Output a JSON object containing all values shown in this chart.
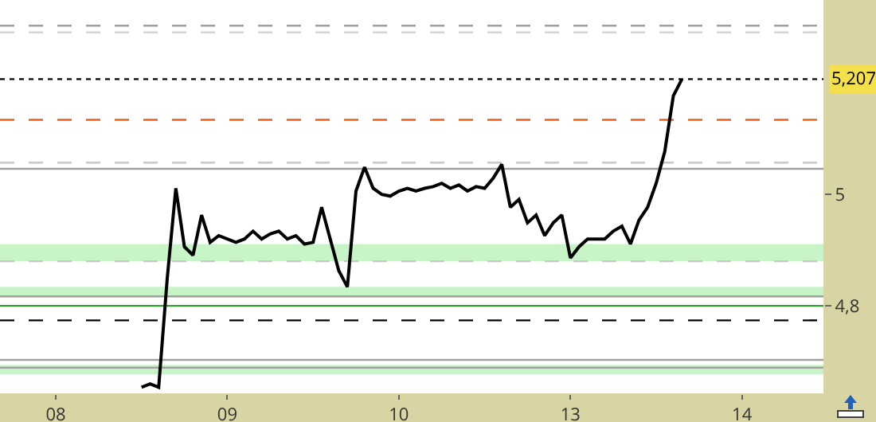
{
  "chart_data": {
    "type": "line",
    "categories": [
      null,
      null,
      null,
      null,
      null,
      null,
      "08",
      null,
      null,
      null,
      null,
      null,
      null,
      null,
      null,
      null,
      null,
      null,
      null,
      null,
      null,
      null,
      null,
      null,
      null,
      null,
      "09",
      null,
      null,
      null,
      null,
      null,
      null,
      null,
      null,
      null,
      null,
      null,
      null,
      null,
      null,
      null,
      null,
      null,
      null,
      null,
      "10",
      null,
      null,
      null,
      null,
      null,
      null,
      null,
      null,
      null,
      null,
      null,
      null,
      null,
      null,
      null,
      null,
      null,
      null,
      null,
      "13",
      null,
      null,
      null,
      null,
      null,
      null,
      null,
      null,
      null,
      null,
      null,
      null,
      null,
      null,
      null,
      null,
      null,
      null,
      null,
      "14",
      null,
      null,
      null,
      null,
      null,
      null,
      null,
      null,
      null
    ],
    "series": [
      {
        "color": "#000000",
        "values": [
          null,
          null,
          null,
          null,
          null,
          null,
          null,
          null,
          null,
          null,
          null,
          null,
          null,
          null,
          null,
          null,
          4.654,
          4.66,
          4.654,
          4.85,
          5.011,
          4.906,
          4.891,
          4.963,
          4.914,
          4.926,
          4.92,
          4.914,
          4.92,
          4.934,
          4.92,
          4.929,
          4.934,
          4.92,
          4.926,
          4.911,
          4.914,
          4.977,
          4.92,
          4.863,
          4.834,
          5.006,
          5.049,
          5.011,
          5.0,
          4.997,
          5.006,
          5.011,
          5.006,
          5.011,
          5.014,
          5.02,
          5.011,
          5.017,
          5.006,
          5.014,
          5.011,
          5.029,
          5.054,
          4.977,
          4.991,
          4.949,
          4.963,
          4.926,
          4.949,
          4.963,
          4.886,
          4.906,
          4.92,
          4.92,
          4.92,
          4.934,
          4.943,
          4.911,
          4.954,
          4.977,
          5.02,
          5.077,
          5.177,
          5.207,
          null,
          null,
          null,
          null,
          null,
          null,
          null,
          null,
          null,
          null,
          null,
          null,
          null,
          null,
          null,
          null
        ]
      }
    ],
    "ylim": [
      4.643,
      5.349
    ],
    "yticks": [
      {
        "value": 4.8,
        "label": "4,8"
      },
      {
        "value": 5,
        "label": "5"
      }
    ],
    "grid": false,
    "marker": "none",
    "line_style": "solid",
    "ref_lines": [
      {
        "axis": "y",
        "value": 5.303,
        "color": "#a0a0a0",
        "line_style": "dashed"
      },
      {
        "axis": "y",
        "value": 5.291,
        "color": "#d0d0d0",
        "line_style": "dashed"
      },
      {
        "axis": "y",
        "value": 5.207,
        "label": "5,207",
        "color": "#000000",
        "line_style": "dotted"
      },
      {
        "axis": "y",
        "value": 5.134,
        "color": "#e8601c",
        "line_style": "dashed"
      },
      {
        "axis": "y",
        "value": 5.057,
        "color": "#c8c8c8",
        "line_style": "dashed"
      },
      {
        "axis": "y",
        "value": 5.046,
        "color": "#a0a0a0",
        "line_style": "solid"
      },
      {
        "axis": "y",
        "value": 4.88,
        "color": "#c8c8c8",
        "line_style": "dashed"
      },
      {
        "axis": "y",
        "value": 4.817,
        "color": "#a0a0a0",
        "line_style": "solid"
      },
      {
        "axis": "y",
        "value": 4.8,
        "color": "#2e9e2e",
        "line_style": "solid"
      },
      {
        "axis": "y",
        "value": 4.774,
        "color": "#000000",
        "line_style": "dashed"
      },
      {
        "axis": "y",
        "value": 4.703,
        "color": "#a0a0a0",
        "line_style": "solid"
      },
      {
        "axis": "y",
        "value": 4.689,
        "color": "#a0a0a0",
        "line_style": "solid"
      }
    ],
    "bands": [
      {
        "axis": "y",
        "from": 4.817,
        "to": 4.834,
        "color": "#c8f5c8"
      },
      {
        "axis": "y",
        "from": 4.88,
        "to": 4.911,
        "color": "#c8f5c8"
      },
      {
        "axis": "y",
        "from": 4.677,
        "to": 4.694,
        "color": "#c8f5c8"
      }
    ]
  }
}
